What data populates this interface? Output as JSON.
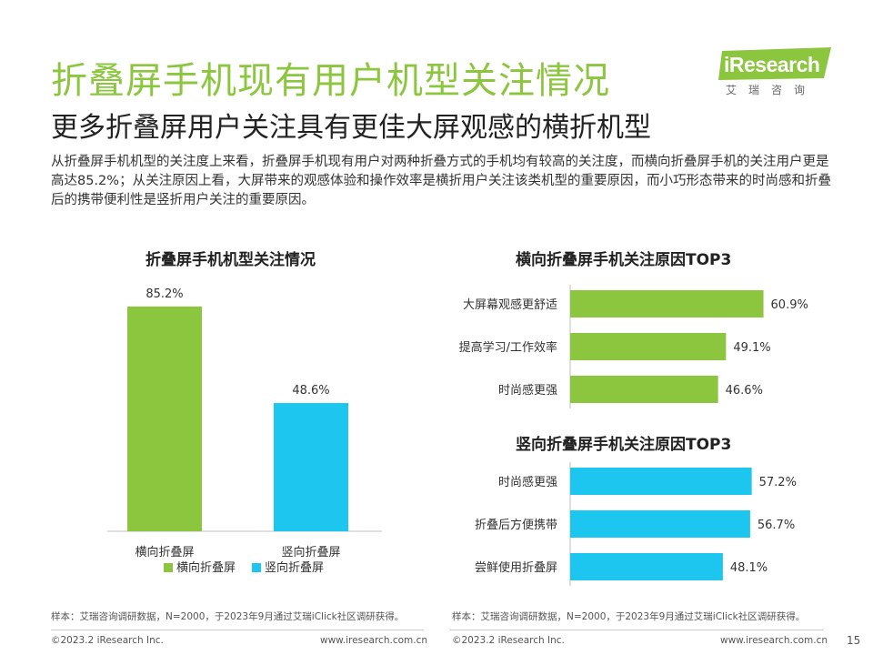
{
  "header": {
    "title": "折叠屏手机现有用户机型关注情况",
    "subtitle": "更多折叠屏用户关注具有更佳大屏观感的横折机型",
    "body": "从折叠屏手机机型的关注度上来看，折叠屏手机现有用户对两种折叠方式的手机均有较高的关注度，而横向折叠屏手机的关注用户更是高达85.2%；从关注原因上看，大屏带来的观感体验和操作效率是横折用户关注该类机型的重要原因，而小巧形态带来的时尚感和折叠后的携带便利性是竖折用户关注的重要原因。"
  },
  "logo": {
    "word": "iResearch",
    "sub": "艾瑞咨询"
  },
  "colors": {
    "green": "#8CC63F",
    "blue": "#1CC6EE",
    "title_green": "#8CC63F"
  },
  "chart_data": [
    {
      "type": "bar",
      "title": "折叠屏手机机型关注情况",
      "categories": [
        "横向折叠屏",
        "竖向折叠屏"
      ],
      "values": [
        85.2,
        48.6
      ],
      "value_labels": [
        "85.2%",
        "48.6%"
      ],
      "colors": [
        "#8CC63F",
        "#1CC6EE"
      ],
      "legend": [
        "横向折叠屏",
        "竖向折叠屏"
      ],
      "legend_position": "bottom",
      "ylim": [
        0,
        100
      ],
      "grid": false
    },
    {
      "type": "bar",
      "orientation": "horizontal",
      "title": "横向折叠屏手机关注原因TOP3",
      "categories": [
        "大屏幕观感更舒适",
        "提高学习/工作效率",
        "时尚感更强"
      ],
      "values": [
        60.9,
        49.1,
        46.6
      ],
      "value_labels": [
        "60.9%",
        "49.1%",
        "46.6%"
      ],
      "color": "#8CC63F",
      "xlim": [
        0,
        80
      ],
      "grid": false
    },
    {
      "type": "bar",
      "orientation": "horizontal",
      "title": "竖向折叠屏手机关注原因TOP3",
      "categories": [
        "时尚感更强",
        "折叠后方便携带",
        "尝鲜使用折叠屏"
      ],
      "values": [
        57.2,
        56.7,
        48.1
      ],
      "value_labels": [
        "57.2%",
        "56.7%",
        "48.1%"
      ],
      "color": "#1CC6EE",
      "xlim": [
        0,
        80
      ],
      "grid": false
    }
  ],
  "notes": {
    "left": "样本：艾瑞咨询调研数据，N=2000，于2023年9月通过艾瑞iClick社区调研获得。",
    "right": "样本：艾瑞咨询调研数据，N=2000，于2023年9月通过艾瑞iClick社区调研获得。"
  },
  "footer": {
    "copyright_left": "©2023.2 iResearch Inc.",
    "url_left": "www.iresearch.com.cn",
    "copyright_right": "©2023.2 iResearch Inc.",
    "url_right": "www.iresearch.com.cn",
    "page": "15"
  }
}
